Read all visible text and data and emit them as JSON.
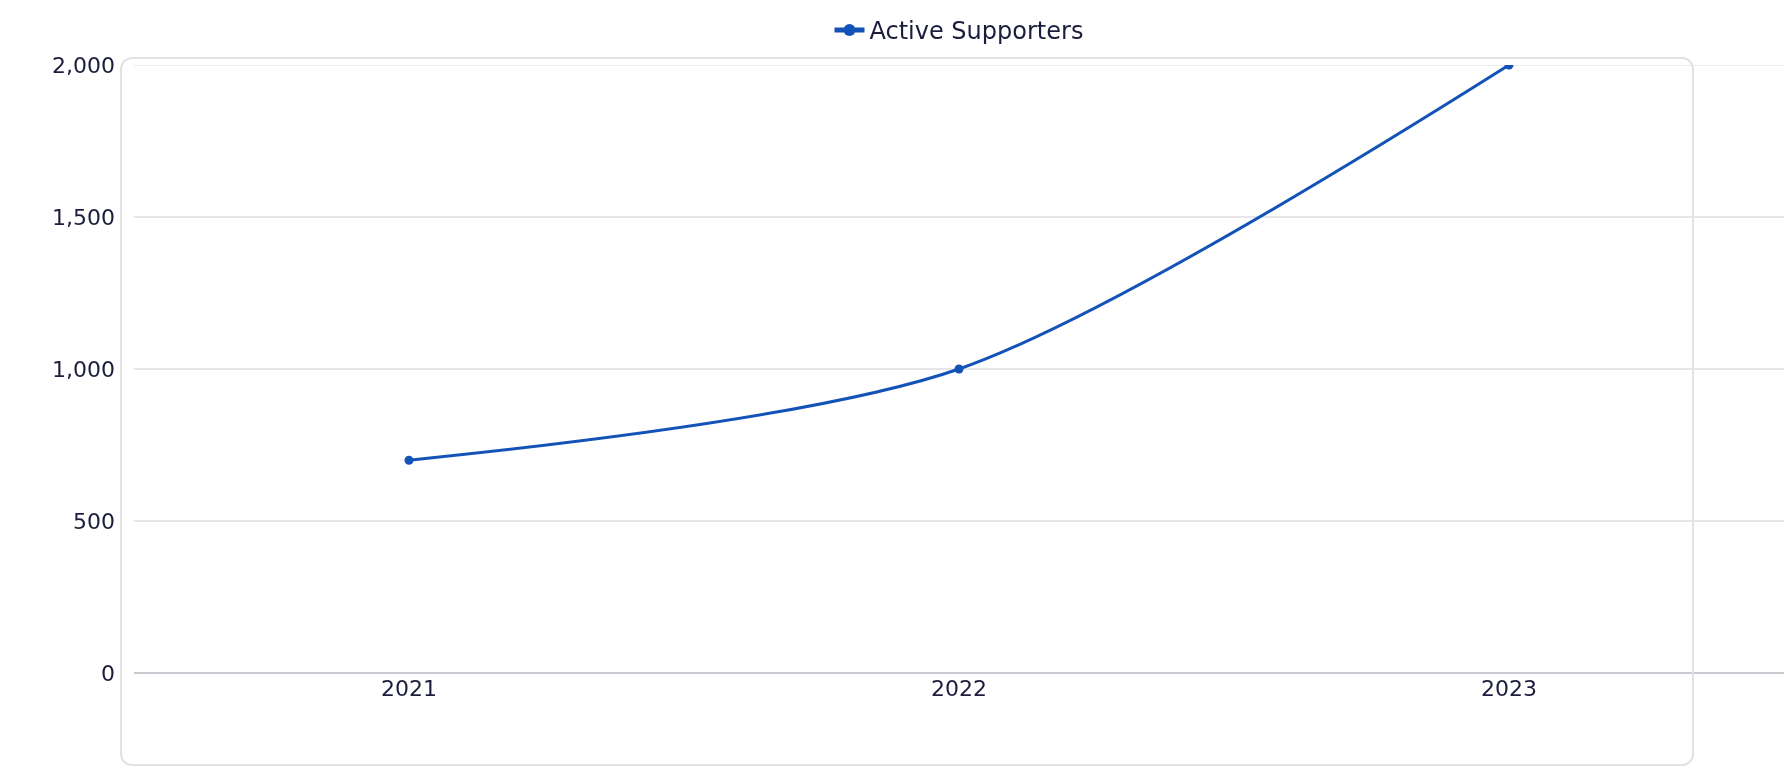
{
  "chart_data": {
    "type": "line",
    "categories": [
      "2021",
      "2022",
      "2023"
    ],
    "series": [
      {
        "name": "Active Supporters",
        "color": "#1353b8",
        "values": [
          700,
          1000,
          2000
        ]
      }
    ],
    "ylim": [
      0,
      2000
    ],
    "yticks": [
      0,
      {
        "value": 500,
        "label": "500"
      },
      {
        "value": 1000,
        "label": "1,000"
      },
      {
        "value": 1500,
        "label": "1,500"
      },
      {
        "value": 2000,
        "label": "2,000"
      }
    ],
    "grid": "y",
    "legend": "top",
    "marker": "circle",
    "line_style": "solid"
  }
}
